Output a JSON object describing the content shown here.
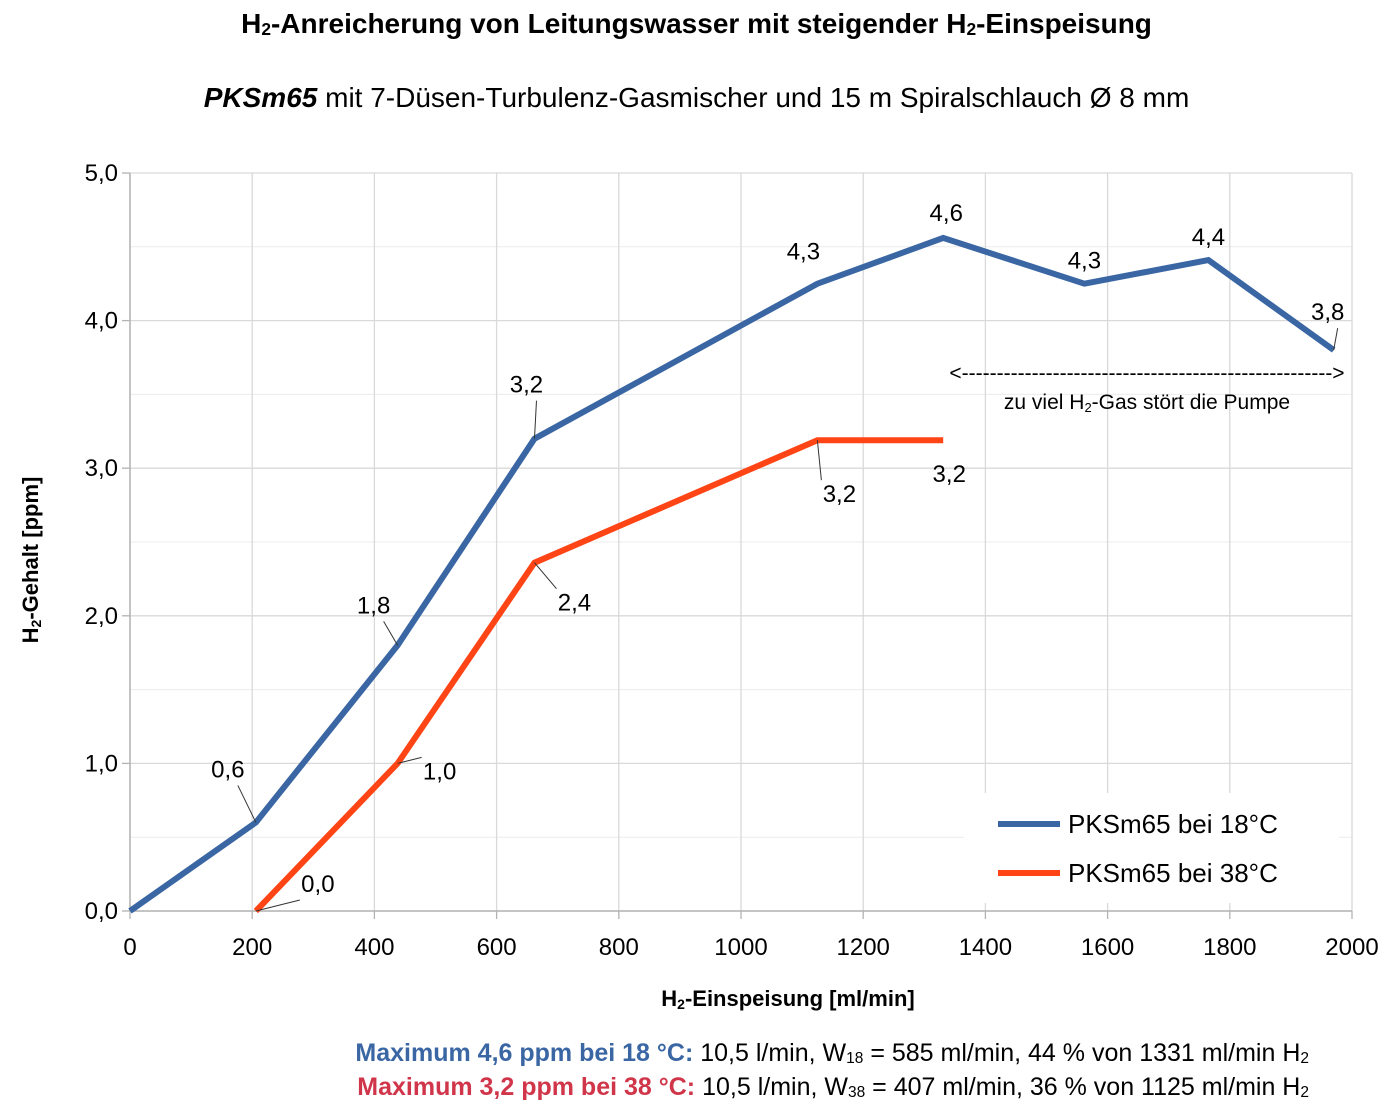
{
  "title": {
    "pre": "H",
    "sub": "2",
    "mid": "-Anreicherung von Leitungswasser mit steigender H",
    "sub2": "2",
    "post": "-Einspeisung"
  },
  "subtitle": {
    "model": "PKSm65",
    "rest": " mit 7-Düsen-Turbulenz-Gasmischer und 15 m Spiralschlauch Ø 8 mm"
  },
  "colors": {
    "series1": "#3a66a4",
    "series2": "#ff4415",
    "footer1": "#3a66a4",
    "footer2": "#d0354a",
    "grid": "#d9d9d9"
  },
  "chart_data": {
    "type": "line",
    "xlabel": {
      "pre": "H",
      "sub": "2",
      "post": "-Einspeisung [ml/min]"
    },
    "ylabel": {
      "pre": "H",
      "sub": "2",
      "post": "-Gehalt [ppm]"
    },
    "xlim": [
      0,
      2000
    ],
    "ylim": [
      0,
      5
    ],
    "xticks": [
      "0",
      "200",
      "400",
      "600",
      "800",
      "1000",
      "1200",
      "1400",
      "1600",
      "1800",
      "2000"
    ],
    "yticks": [
      "0,0",
      "1,0",
      "2,0",
      "3,0",
      "4,0",
      "5,0"
    ],
    "grid": true,
    "legend_position": "bottom-right",
    "series": [
      {
        "name": "PKSm65 bei 18°C",
        "x": [
          0,
          206,
          438,
          662,
          1125,
          1331,
          1562,
          1765,
          1970
        ],
        "y": [
          0.0,
          0.6,
          1.8,
          3.2,
          4.25,
          4.56,
          4.25,
          4.41,
          3.8
        ],
        "labels": [
          "",
          "0,6",
          "1,8",
          "3,2",
          "4,3",
          "4,6",
          "4,3",
          "4,4",
          "3,8"
        ]
      },
      {
        "name": "PKSm65 bei 38°C",
        "x": [
          206,
          438,
          662,
          1125,
          1331
        ],
        "y": [
          0.0,
          1.0,
          2.36,
          3.19,
          3.19
        ],
        "labels": [
          "0,0",
          "1,0",
          "2,4",
          "3,2",
          "3,2"
        ]
      }
    ],
    "annotation": {
      "arrow": "<----------------------------------------------------->",
      "text_pre": "zu viel H",
      "text_sub": "2",
      "text_post": "-Gas stört die Pumpe"
    }
  },
  "footer": [
    {
      "highlight": "Maximum 4,6 ppm bei 18 °C:",
      "text_a": " 10,5 l/min, W",
      "sub": "18",
      "text_b": " = 585 ml/min, 44 % von 1331 ml/min H",
      "sub2": "2"
    },
    {
      "highlight": "Maximum 3,2 ppm bei 38 °C:",
      "text_a": " 10,5 l/min, W",
      "sub": "38",
      "text_b": " = 407 ml/min, 36 % von 1125 ml/min H",
      "sub2": "2"
    }
  ]
}
